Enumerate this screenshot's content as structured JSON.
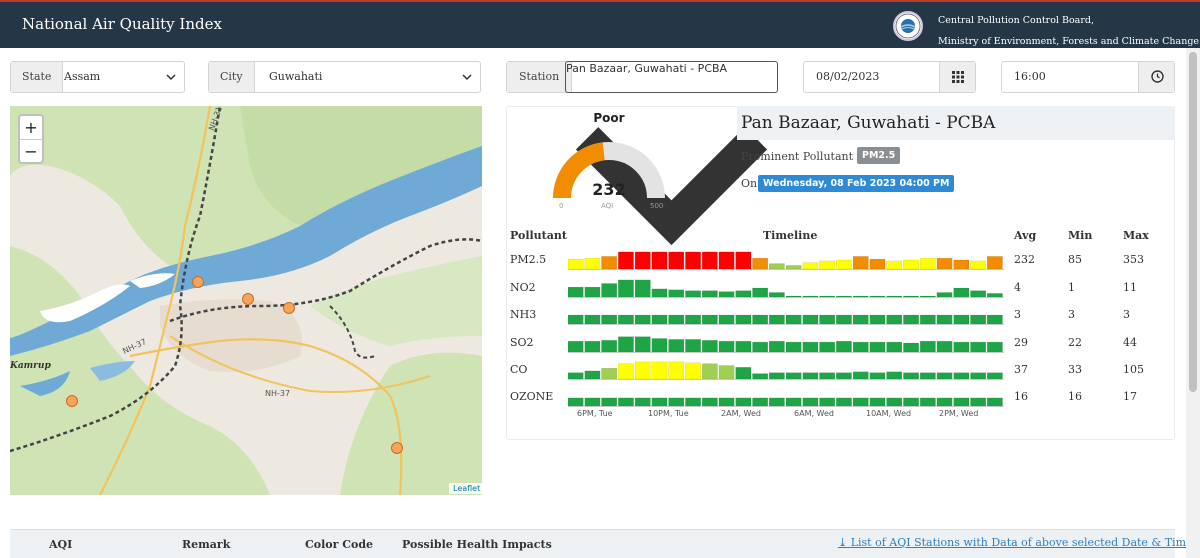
{
  "header": {
    "title": "National Air Quality Index",
    "org_line1": "Central Pollution Control Board,",
    "org_line2": "Ministry of Environment, Forests and Climate Change"
  },
  "filters": {
    "state_label": "State",
    "state_value": "Assam",
    "city_label": "City",
    "city_value": "Guwahati",
    "station_label": "Station",
    "station_value": "Pan Bazaar, Guwahati - PCBA",
    "date_value": "08/02/2023",
    "time_value": "16:00"
  },
  "map": {
    "zoom_in": "+",
    "zoom_out": "−",
    "labels": [
      "NH-31",
      "NH-37",
      "Kamrup",
      "NH-37"
    ],
    "attribution": "Leaflet"
  },
  "station": {
    "name": "Pan Bazaar, Guwahati - PCBA",
    "aqi_status": "Poor",
    "aqi": 232,
    "aqi_fraction": 0.464,
    "gauge_min": "0",
    "gauge_caption": "AQI",
    "gauge_max": "500",
    "prominent_label": "Prominent Pollutant is",
    "prominent_value": "PM2.5",
    "on_label": "On",
    "on_value": "Wednesday, 08 Feb 2023 04:00 PM"
  },
  "colors": {
    "poor": "#f28c00",
    "gauge_bg": "#e3e3e3",
    "good": "#1ea646",
    "satisfactory": "#9fcf53",
    "moderate": "#ffff00",
    "poor_bar": "#f28c00",
    "very_poor": "#ff0000",
    "badge_grey": "#8a8f93",
    "badge_blue": "#2f8ad6"
  },
  "table": {
    "headers": {
      "pollutant": "Pollutant",
      "timeline": "Timeline",
      "avg": "Avg",
      "min": "Min",
      "max": "Max"
    },
    "time_ticks": [
      "6PM, Tue",
      "10PM, Tue",
      "2AM, Wed",
      "6AM, Wed",
      "10AM, Wed",
      "2PM, Wed"
    ],
    "rows": [
      {
        "name": "PM2.5",
        "avg": "232",
        "min": "85",
        "max": "353",
        "values": [
          0.55,
          0.6,
          0.7,
          0.95,
          0.95,
          0.95,
          0.95,
          0.95,
          0.95,
          0.95,
          0.95,
          0.6,
          0.3,
          0.2,
          0.35,
          0.45,
          0.5,
          0.7,
          0.55,
          0.45,
          0.5,
          0.6,
          0.6,
          0.5,
          0.45,
          0.7
        ],
        "levels": [
          "moderate",
          "moderate",
          "poor_bar",
          "very_poor",
          "very_poor",
          "very_poor",
          "very_poor",
          "very_poor",
          "very_poor",
          "very_poor",
          "very_poor",
          "poor_bar",
          "satisfactory",
          "satisfactory",
          "moderate",
          "moderate",
          "moderate",
          "poor_bar",
          "poor_bar",
          "moderate",
          "moderate",
          "moderate",
          "poor_bar",
          "poor_bar",
          "moderate",
          "poor_bar"
        ]
      },
      {
        "name": "NO2",
        "avg": "4",
        "min": "1",
        "max": "11",
        "values": [
          0.55,
          0.55,
          0.75,
          0.95,
          0.95,
          0.45,
          0.4,
          0.35,
          0.35,
          0.3,
          0.35,
          0.5,
          0.25,
          0.03,
          0.03,
          0.03,
          0.03,
          0.03,
          0.03,
          0.03,
          0.03,
          0.03,
          0.25,
          0.5,
          0.35,
          0.2
        ],
        "levels": [
          "good",
          "good",
          "good",
          "good",
          "good",
          "good",
          "good",
          "good",
          "good",
          "good",
          "good",
          "good",
          "good",
          "good",
          "good",
          "good",
          "good",
          "good",
          "good",
          "good",
          "good",
          "good",
          "good",
          "good",
          "good",
          "good"
        ]
      },
      {
        "name": "NH3",
        "avg": "3",
        "min": "3",
        "max": "3",
        "values": [
          0.5,
          0.5,
          0.5,
          0.5,
          0.5,
          0.5,
          0.5,
          0.5,
          0.5,
          0.5,
          0.5,
          0.5,
          0.5,
          0.5,
          0.5,
          0.5,
          0.5,
          0.5,
          0.5,
          0.5,
          0.5,
          0.5,
          0.5,
          0.5,
          0.5,
          0.5
        ],
        "levels": [
          "good",
          "good",
          "good",
          "good",
          "good",
          "good",
          "good",
          "good",
          "good",
          "good",
          "good",
          "good",
          "good",
          "good",
          "good",
          "good",
          "good",
          "good",
          "good",
          "good",
          "good",
          "good",
          "good",
          "good",
          "good",
          "good"
        ]
      },
      {
        "name": "SO2",
        "avg": "29",
        "min": "22",
        "max": "44",
        "values": [
          0.6,
          0.6,
          0.65,
          0.85,
          0.85,
          0.75,
          0.7,
          0.7,
          0.65,
          0.6,
          0.6,
          0.55,
          0.6,
          0.55,
          0.55,
          0.55,
          0.6,
          0.55,
          0.55,
          0.55,
          0.5,
          0.6,
          0.6,
          0.55,
          0.55,
          0.55
        ],
        "levels": [
          "good",
          "good",
          "good",
          "good",
          "good",
          "good",
          "good",
          "good",
          "good",
          "good",
          "good",
          "good",
          "good",
          "good",
          "good",
          "good",
          "good",
          "good",
          "good",
          "good",
          "good",
          "good",
          "good",
          "good",
          "good",
          "good"
        ]
      },
      {
        "name": "CO",
        "avg": "37",
        "min": "33",
        "max": "105",
        "values": [
          0.35,
          0.45,
          0.6,
          0.85,
          0.95,
          0.95,
          0.95,
          0.9,
          0.85,
          0.75,
          0.65,
          0.3,
          0.35,
          0.35,
          0.35,
          0.35,
          0.35,
          0.4,
          0.35,
          0.4,
          0.35,
          0.35,
          0.35,
          0.35,
          0.35,
          0.35
        ],
        "levels": [
          "good",
          "good",
          "satisfactory",
          "moderate",
          "moderate",
          "moderate",
          "moderate",
          "moderate",
          "satisfactory",
          "satisfactory",
          "good",
          "good",
          "good",
          "good",
          "good",
          "good",
          "good",
          "good",
          "good",
          "good",
          "good",
          "good",
          "good",
          "good",
          "good",
          "good"
        ]
      },
      {
        "name": "OZONE",
        "avg": "16",
        "min": "16",
        "max": "17",
        "values": [
          0.45,
          0.45,
          0.45,
          0.45,
          0.45,
          0.45,
          0.45,
          0.45,
          0.45,
          0.45,
          0.45,
          0.45,
          0.45,
          0.45,
          0.45,
          0.45,
          0.45,
          0.45,
          0.45,
          0.45,
          0.45,
          0.45,
          0.45,
          0.45,
          0.45,
          0.45
        ],
        "levels": [
          "good",
          "good",
          "good",
          "good",
          "good",
          "good",
          "good",
          "good",
          "good",
          "good",
          "good",
          "good",
          "good",
          "good",
          "good",
          "good",
          "good",
          "good",
          "good",
          "good",
          "good",
          "good",
          "good",
          "good",
          "good",
          "good"
        ]
      }
    ]
  },
  "bottom": {
    "col_aqi": "AQI",
    "col_remark": "Remark",
    "col_color": "Color Code",
    "col_impacts": "Possible Health Impacts",
    "link_text": "List of AQI Stations with Data of above selected Date & Time"
  }
}
